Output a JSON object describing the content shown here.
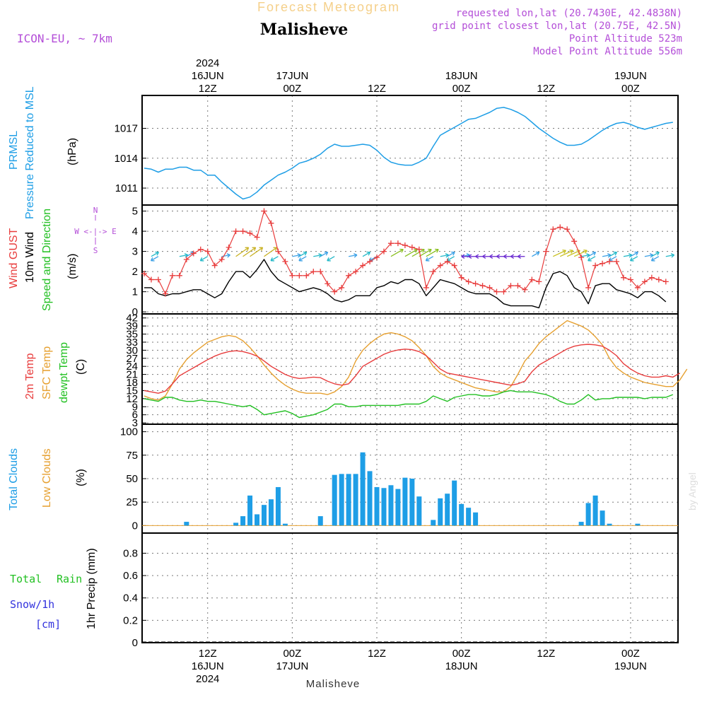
{
  "header": {
    "forecast_title": "Forecast Meteogram",
    "location": "Malisheve",
    "model": "ICON-EU, ~ 7km",
    "requested": "requested lon,lat (20.7430E, 42.4838N)",
    "grid_point": "grid point closest lon,lat (20.75E, 42.5N)",
    "point_altitude": "Point Altitude 523m",
    "model_altitude": "Model Point Altitude 556m",
    "footer_location": "Malisheve",
    "watermark": "by Angel"
  },
  "colors": {
    "pressure": "#1e9ee6",
    "gust": "#e83c3c",
    "wind10m": "#000000",
    "t2m": "#e83c3c",
    "sfc": "#e6a030",
    "dewpt": "#22c022",
    "total_clouds": "#1e9ee6",
    "low_clouds": "#e6a030",
    "rain": "#22c022",
    "snow": "#3333dd",
    "header_purple": "#b44fd8",
    "forecast_title": "#f5d08a"
  },
  "time_axis": {
    "top": [
      {
        "slot": 9,
        "lines": [
          "2024",
          "16JUN",
          "12Z"
        ]
      },
      {
        "slot": 21,
        "lines": [
          "17JUN",
          "00Z"
        ]
      },
      {
        "slot": 33,
        "lines": [
          "12Z"
        ]
      },
      {
        "slot": 45,
        "lines": [
          "18JUN",
          "00Z"
        ]
      },
      {
        "slot": 57,
        "lines": [
          "12Z"
        ]
      },
      {
        "slot": 69,
        "lines": [
          "19JUN",
          "00Z"
        ]
      }
    ],
    "bottom": [
      {
        "slot": 9,
        "lines": [
          "12Z",
          "16JUN",
          "2024"
        ]
      },
      {
        "slot": 21,
        "lines": [
          "00Z",
          "17JUN"
        ]
      },
      {
        "slot": 33,
        "lines": [
          "12Z"
        ]
      },
      {
        "slot": 45,
        "lines": [
          "00Z",
          "18JUN"
        ]
      },
      {
        "slot": 57,
        "lines": [
          "12Z"
        ]
      },
      {
        "slot": 69,
        "lines": [
          "00Z",
          "19JUN"
        ]
      }
    ]
  },
  "panel_labels": {
    "pressure": {
      "title": "PRMSL",
      "subtitle": "Pressure Reduced to MSL",
      "unit": "(hPa)"
    },
    "wind": {
      "gust": "Wind GUST",
      "wind10": "10m Wind",
      "speed_dir": "Speed and Direction",
      "unit": "(m/s)",
      "compass_ns": "N",
      "compass_s": "S",
      "compass_we": "W <-|-> E"
    },
    "temp": {
      "t2m": "2m Temp",
      "sfc": "SFC Temp",
      "dewpt": "dewpt Temp",
      "unit": "(C)"
    },
    "clouds": {
      "total": "Total Clouds",
      "low": "Low Clouds",
      "unit": "(%)"
    },
    "precip": {
      "total": "Total",
      "rain": "Rain",
      "snow": "Snow/1h",
      "cm": "[cm]",
      "unit": "1hr Precip (mm)"
    }
  },
  "chart_data": [
    {
      "type": "line",
      "title": "PRMSL Pressure Reduced to MSL",
      "ylabel": "hPa",
      "ylim": [
        1009.3,
        1020.3
      ],
      "yticks": [
        1011,
        1014,
        1017
      ],
      "x_step_hours": 1,
      "series": [
        {
          "name": "PRMSL",
          "values": [
            1013.0,
            1012.9,
            1012.6,
            1012.9,
            1012.9,
            1013.1,
            1013.1,
            1012.8,
            1012.8,
            1012.3,
            1012.3,
            1011.6,
            1011.0,
            1010.4,
            1009.9,
            1010.1,
            1010.6,
            1011.3,
            1011.8,
            1012.3,
            1012.6,
            1013.0,
            1013.5,
            1013.7,
            1014.0,
            1014.4,
            1015.0,
            1015.4,
            1015.2,
            1015.2,
            1015.3,
            1015.4,
            1015.3,
            1014.8,
            1014.1,
            1013.6,
            1013.4,
            1013.3,
            1013.3,
            1013.6,
            1014.0,
            1015.2,
            1016.3,
            1016.7,
            1017.1,
            1017.5,
            1017.9,
            1018.0,
            1018.3,
            1018.6,
            1019.0,
            1019.1,
            1018.9,
            1018.6,
            1018.2,
            1017.6,
            1017.0,
            1016.5,
            1016.0,
            1015.6,
            1015.3,
            1015.3,
            1015.4,
            1015.8,
            1016.3,
            1016.8,
            1017.2,
            1017.5,
            1017.6,
            1017.4,
            1017.1,
            1016.9,
            1017.1,
            1017.3,
            1017.5,
            1017.6
          ]
        }
      ]
    },
    {
      "type": "line",
      "title": "Wind GUST / 10m Wind Speed and Direction",
      "ylabel": "m/s",
      "ylim": [
        -0.1,
        5.3
      ],
      "yticks": [
        0,
        1,
        2,
        3,
        4,
        5
      ],
      "x_step_hours": 1,
      "series": [
        {
          "name": "Wind GUST",
          "values": [
            1.9,
            1.6,
            1.6,
            0.9,
            1.8,
            1.8,
            2.6,
            2.9,
            3.1,
            3.0,
            2.3,
            2.6,
            3.2,
            4.0,
            4.0,
            3.9,
            3.7,
            5.0,
            4.4,
            3.0,
            2.5,
            1.8,
            1.8,
            1.8,
            2.0,
            2.0,
            1.4,
            1.0,
            1.2,
            1.8,
            2.0,
            2.3,
            2.5,
            2.7,
            3.0,
            3.4,
            3.4,
            3.3,
            3.2,
            3.1,
            1.2,
            2.0,
            2.3,
            2.5,
            2.3,
            1.7,
            1.5,
            1.4,
            1.3,
            1.2,
            1.0,
            1.0,
            1.3,
            1.3,
            1.1,
            1.6,
            1.5,
            3.0,
            4.1,
            4.2,
            4.1,
            3.5,
            2.7,
            1.2,
            2.3,
            2.4,
            2.5,
            2.5,
            1.7,
            1.6,
            1.2,
            1.5,
            1.7,
            1.6,
            1.5
          ]
        },
        {
          "name": "10m Wind",
          "values": [
            1.2,
            1.2,
            0.9,
            0.8,
            0.9,
            0.9,
            1.0,
            1.1,
            1.1,
            0.9,
            0.7,
            0.9,
            1.5,
            2.0,
            2.0,
            1.7,
            2.1,
            2.6,
            2.0,
            1.6,
            1.4,
            1.2,
            1.0,
            1.1,
            1.2,
            1.1,
            0.9,
            0.6,
            0.5,
            0.6,
            0.8,
            0.8,
            0.8,
            1.2,
            1.3,
            1.5,
            1.4,
            1.6,
            1.6,
            1.4,
            0.8,
            1.2,
            1.6,
            1.5,
            1.4,
            1.2,
            1.0,
            0.9,
            0.9,
            0.9,
            0.7,
            0.4,
            0.3,
            0.3,
            0.3,
            0.3,
            0.2,
            1.2,
            1.9,
            2.0,
            1.8,
            1.2,
            1.0,
            0.4,
            1.3,
            1.4,
            1.4,
            1.1,
            1.0,
            0.9,
            0.7,
            1.0,
            1.0,
            0.8,
            0.5
          ]
        }
      ],
      "direction_arrows": {
        "name": "Speed and Direction",
        "y_value": 2.75,
        "slots": [
          1,
          2,
          5,
          6,
          9,
          11,
          13,
          14,
          15,
          17,
          19,
          21,
          22,
          23,
          24,
          25,
          27,
          29,
          31,
          33,
          35,
          37,
          38,
          39,
          40,
          41,
          42,
          43,
          44,
          45,
          46,
          47,
          48,
          49,
          50,
          51,
          52,
          53,
          54,
          55,
          58,
          59,
          60,
          61,
          62,
          63,
          64,
          65,
          66,
          67,
          68,
          69,
          70,
          71,
          72,
          73,
          74
        ]
      }
    },
    {
      "type": "line",
      "title": "2m Temp / SFC Temp / dewpt Temp",
      "ylabel": "C",
      "ylim": [
        2.5,
        43.5
      ],
      "yticks": [
        3,
        6,
        9,
        12,
        15,
        18,
        21,
        24,
        27,
        30,
        33,
        36,
        39,
        42
      ],
      "ytick_labels": [
        "3",
        "6",
        "9",
        "12",
        "15",
        "18",
        "21",
        "24",
        "27",
        "30",
        "33",
        "35",
        "39",
        "42"
      ],
      "x_step_hours": 1,
      "series": [
        {
          "name": "2m Temp",
          "values": [
            15,
            14.5,
            14,
            14.8,
            17.5,
            20.5,
            22,
            23.5,
            25,
            26.5,
            27.8,
            28.8,
            29.5,
            29.8,
            29.5,
            28.8,
            27.8,
            26,
            24,
            22.5,
            21,
            20,
            19.5,
            19.7,
            20,
            19.8,
            18.5,
            17.5,
            17,
            17.5,
            20.5,
            24,
            25.5,
            27,
            28.5,
            29.5,
            30.1,
            30.4,
            30.2,
            29.5,
            28,
            25.5,
            23,
            21.5,
            21,
            20.5,
            20,
            19.5,
            19,
            18.5,
            18,
            17.5,
            17,
            17.5,
            18.5,
            22,
            24.5,
            26,
            27.5,
            29,
            30.5,
            31.5,
            32,
            32.2,
            32,
            31.5,
            30,
            28,
            25,
            23,
            21.5,
            20.5,
            20,
            20,
            20.5,
            20,
            21.5
          ]
        },
        {
          "name": "SFC Temp",
          "values": [
            13,
            12,
            11.5,
            13,
            17.5,
            23,
            26.5,
            29,
            31,
            33,
            34,
            35,
            35.5,
            35,
            33.5,
            31,
            28,
            24.5,
            21.5,
            19,
            17,
            15.5,
            14.5,
            14,
            14,
            14,
            13.5,
            14.5,
            16.5,
            20,
            26,
            30,
            32.5,
            34.5,
            36,
            36.5,
            36,
            35,
            33.5,
            31,
            28,
            24,
            21.5,
            20,
            19,
            18,
            17,
            16,
            15.5,
            15,
            14.5,
            14.5,
            16.5,
            21,
            26,
            29,
            32.5,
            35,
            37,
            39,
            41,
            40,
            39,
            37.5,
            35,
            32,
            27,
            23.5,
            21.5,
            20,
            19,
            18,
            17.5,
            17,
            16.5,
            16.5,
            19,
            23
          ]
        },
        {
          "name": "dewpt Temp",
          "values": [
            12,
            11.5,
            11,
            12.5,
            12.5,
            11.5,
            11,
            11,
            11.5,
            11,
            11,
            10.5,
            10,
            9.5,
            9,
            9.5,
            8,
            6,
            6.5,
            7,
            7.5,
            6.5,
            5,
            5.5,
            6,
            7,
            8,
            10,
            10,
            9,
            9,
            9.5,
            9.5,
            9.5,
            9.5,
            9.5,
            9.5,
            10,
            10,
            10,
            11,
            13,
            12,
            11,
            12.5,
            13,
            13.5,
            13.5,
            13,
            13,
            13.5,
            14.5,
            15,
            14.5,
            14.5,
            14.5,
            14,
            13.5,
            12.5,
            11,
            10,
            10,
            11.5,
            13.5,
            11.5,
            12,
            12,
            12.5,
            12.5,
            12.5,
            12.5,
            12,
            12.5,
            12.5,
            12.5,
            13.5
          ]
        }
      ]
    },
    {
      "type": "bar",
      "title": "Total Clouds / Low Clouds",
      "ylabel": "%",
      "ylim": [
        -8,
        108
      ],
      "yticks": [
        0,
        25,
        50,
        75,
        100
      ],
      "x_step_hours": 1,
      "series": [
        {
          "name": "Total Clouds",
          "values": [
            0,
            0,
            0,
            0,
            0,
            0,
            4,
            0,
            0,
            0,
            0,
            0,
            0,
            3,
            10,
            32,
            12,
            22,
            28,
            41,
            2,
            0,
            0,
            0,
            0,
            10,
            0,
            54,
            55,
            55,
            55,
            78,
            58,
            41,
            40,
            43,
            39,
            51,
            50,
            31,
            0,
            6,
            29,
            34,
            48,
            23,
            19,
            14,
            0,
            0,
            0,
            0,
            0,
            0,
            0,
            0,
            0,
            0,
            0,
            0,
            0,
            0,
            4,
            24,
            32,
            16,
            2,
            0,
            0,
            0,
            2,
            0,
            0,
            0,
            0,
            0,
            0
          ]
        },
        {
          "name": "Low Clouds",
          "values": [
            0,
            0,
            0,
            0,
            0,
            0,
            0,
            0,
            0,
            0,
            0,
            0,
            0,
            0,
            0,
            0,
            0,
            0,
            0,
            0,
            0,
            0,
            0,
            0,
            0,
            0,
            0,
            0,
            0,
            0,
            0,
            0,
            0,
            0,
            0,
            0,
            0,
            0,
            0,
            0,
            0,
            0,
            0,
            0,
            0,
            0,
            0,
            0,
            0,
            0,
            0,
            0,
            0,
            0,
            0,
            0,
            0,
            0,
            0,
            0,
            0,
            0,
            0,
            0,
            0,
            0,
            0,
            0,
            0,
            0,
            0,
            0,
            0,
            0,
            0,
            0,
            0
          ]
        }
      ]
    },
    {
      "type": "bar",
      "title": "1hr Precip",
      "ylabel": "mm",
      "ylim": [
        0,
        0.98
      ],
      "yticks": [
        0,
        0.2,
        0.4,
        0.6,
        0.8
      ],
      "ytick_labels": [
        "0",
        "0.2",
        "0.4",
        "0.6",
        "0.8"
      ],
      "x_step_hours": 1,
      "series": [
        {
          "name": "Total Rain",
          "values": [
            0,
            0,
            0,
            0,
            0,
            0,
            0,
            0,
            0,
            0,
            0,
            0,
            0,
            0,
            0,
            0,
            0,
            0,
            0,
            0,
            0,
            0,
            0,
            0,
            0,
            0,
            0,
            0,
            0,
            0,
            0,
            0,
            0,
            0,
            0,
            0,
            0,
            0,
            0,
            0,
            0,
            0,
            0,
            0,
            0,
            0,
            0,
            0,
            0,
            0,
            0,
            0,
            0,
            0,
            0,
            0,
            0,
            0,
            0,
            0,
            0,
            0,
            0,
            0,
            0,
            0,
            0,
            0,
            0,
            0,
            0,
            0,
            0,
            0,
            0,
            0,
            0
          ]
        },
        {
          "name": "Snow/1h",
          "values": [
            0,
            0,
            0,
            0,
            0,
            0,
            0,
            0,
            0,
            0,
            0,
            0,
            0,
            0,
            0,
            0,
            0,
            0,
            0,
            0,
            0,
            0,
            0,
            0,
            0,
            0,
            0,
            0,
            0,
            0,
            0,
            0,
            0,
            0,
            0,
            0,
            0,
            0,
            0,
            0,
            0,
            0,
            0,
            0,
            0,
            0,
            0,
            0,
            0,
            0,
            0,
            0,
            0,
            0,
            0,
            0,
            0,
            0,
            0,
            0,
            0,
            0,
            0,
            0,
            0,
            0,
            0,
            0,
            0,
            0,
            0,
            0,
            0,
            0,
            0,
            0,
            0
          ]
        }
      ]
    }
  ]
}
